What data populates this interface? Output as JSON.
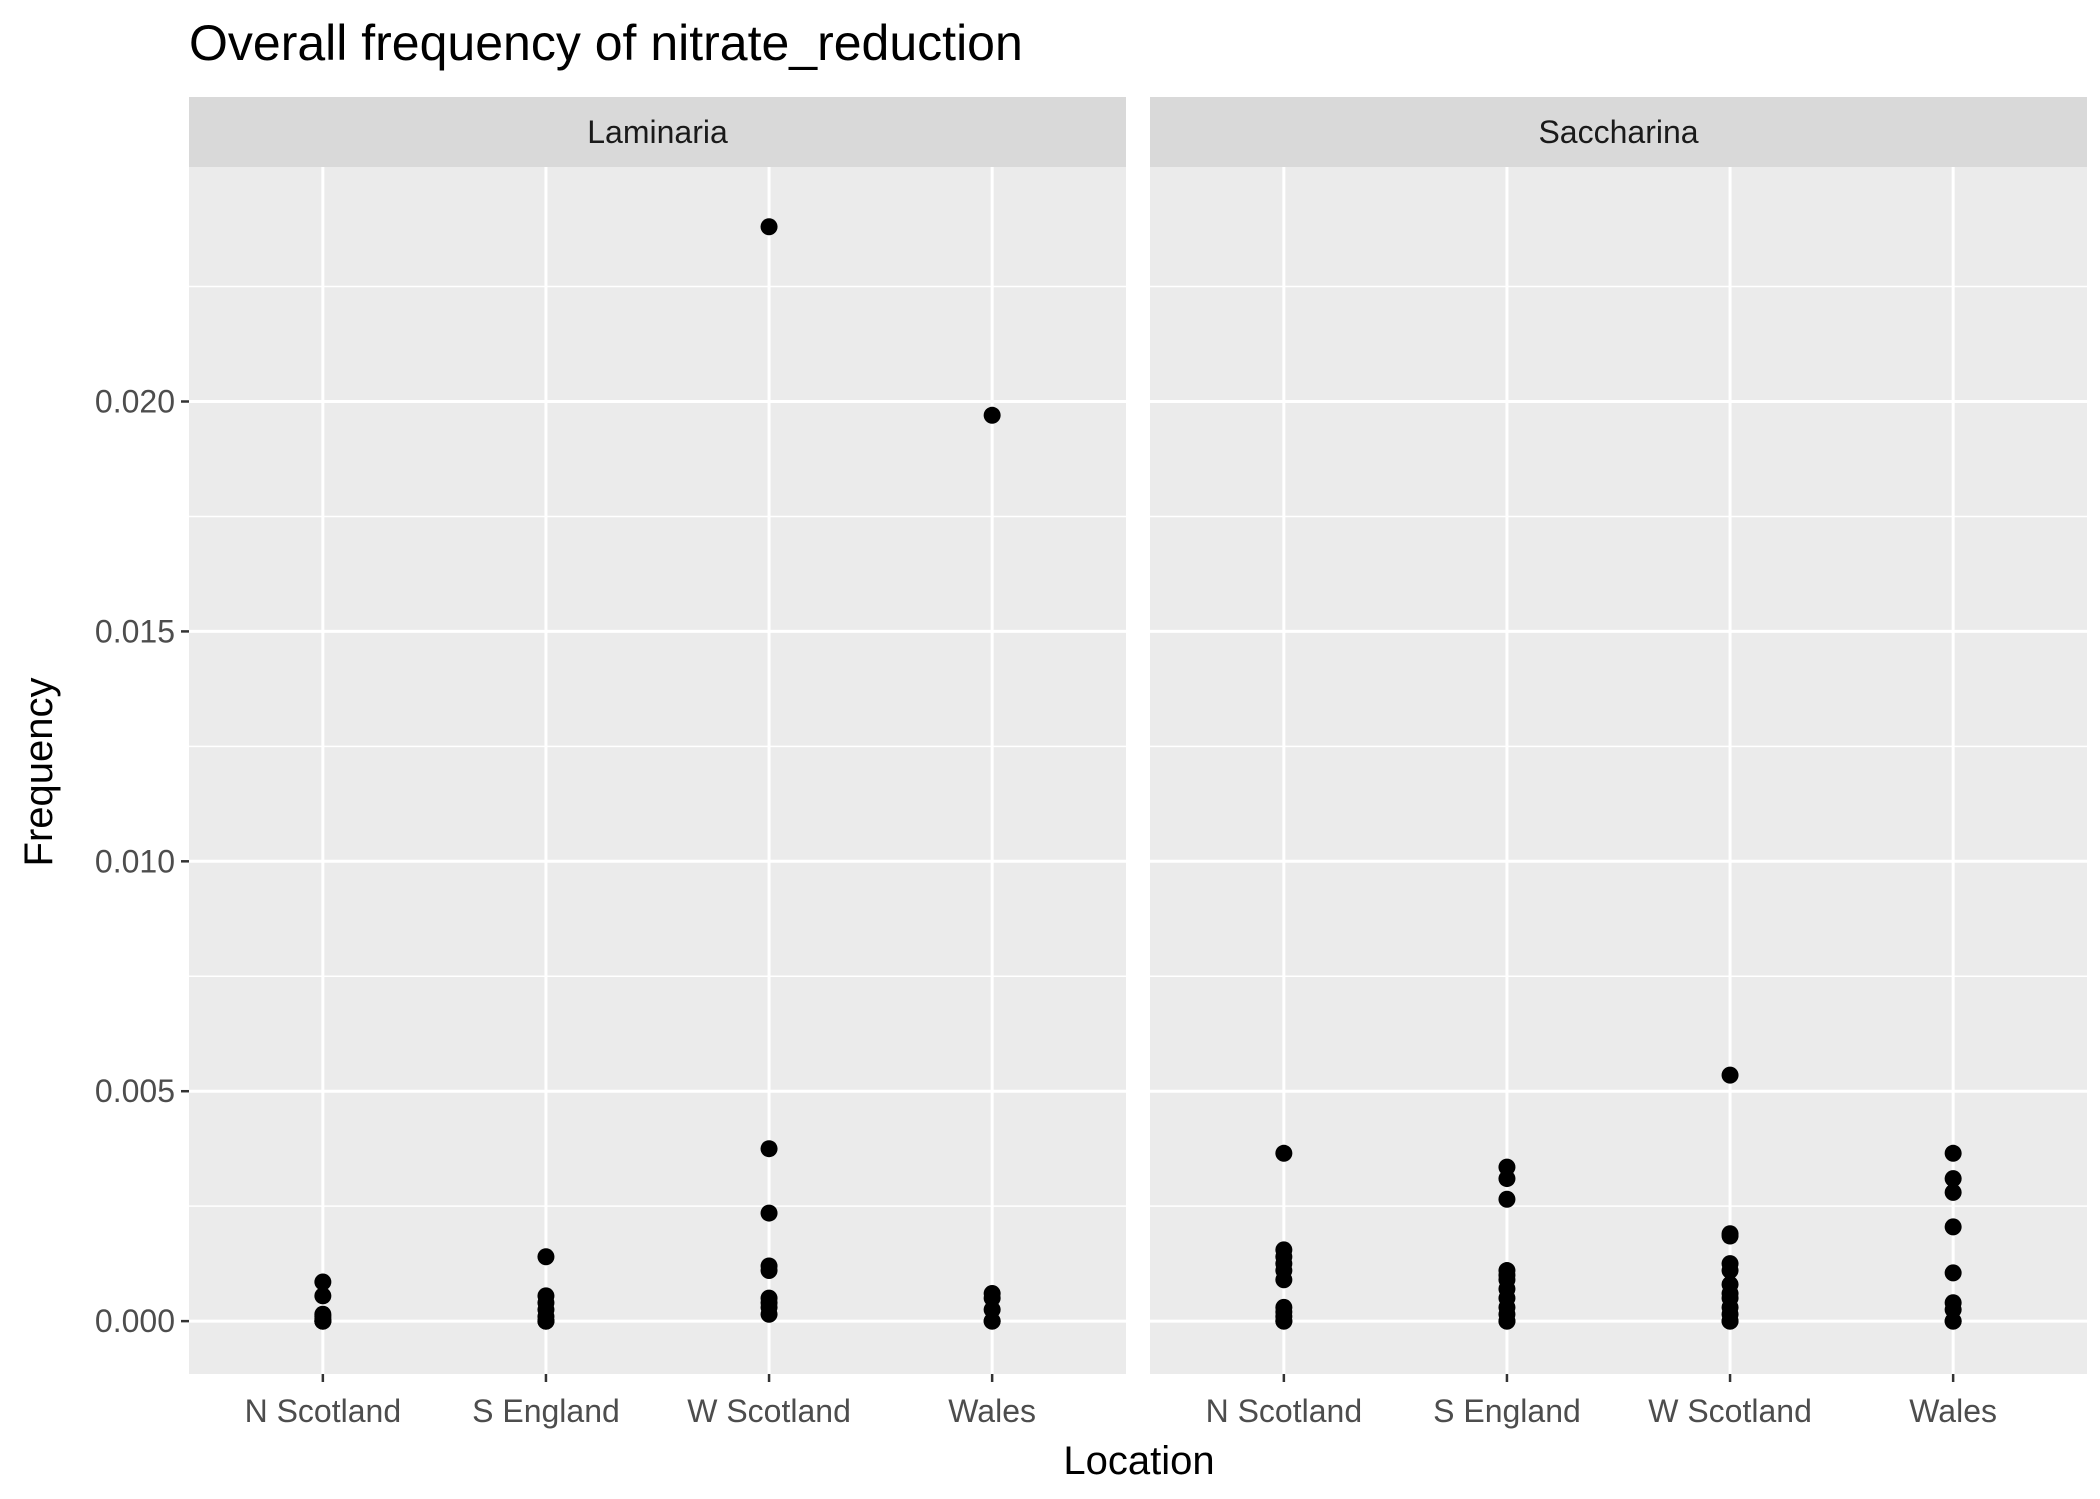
{
  "chart_data": {
    "type": "scatter",
    "title": "Overall frequency of nitrate_reduction",
    "xlabel": "Location",
    "ylabel": "Frequency",
    "categories": [
      "N Scotland",
      "S England",
      "W Scotland",
      "Wales"
    ],
    "ylim": [
      -0.00115,
      0.0251
    ],
    "yticks": [
      0.0,
      0.005,
      0.01,
      0.015,
      0.02
    ],
    "ytick_labels": [
      "0.000",
      "0.005",
      "0.010",
      "0.015",
      "0.020"
    ],
    "grid": true,
    "point_color": "#000000",
    "panel_background": "#ebebeb",
    "strip_background": "#d9d9d9",
    "panels": [
      {
        "name": "Laminaria",
        "points": {
          "N Scotland": [
            0.00085,
            0.00055,
            0.00015,
            0.0001,
            5e-05,
            0.0,
            0.0,
            0.0
          ],
          "S England": [
            0.0014,
            0.00055,
            0.0004,
            0.00025,
            0.0001,
            0.0,
            0.0,
            0.0
          ],
          "W Scotland": [
            0.0238,
            0.00375,
            0.00235,
            0.0012,
            0.0011,
            0.0005,
            0.0004,
            0.0003,
            0.00015
          ],
          "Wales": [
            0.0197,
            0.0006,
            0.0005,
            0.00025,
            0.0,
            0.0
          ]
        }
      },
      {
        "name": "Saccharina",
        "points": {
          "N Scotland": [
            0.00365,
            0.00155,
            0.0014,
            0.00125,
            0.0011,
            0.0009,
            0.0003,
            0.0002,
            0.0001,
            0.0,
            0.0
          ],
          "S England": [
            0.00335,
            0.0031,
            0.00265,
            0.0011,
            0.001,
            0.0009,
            0.0007,
            0.0005,
            0.0003,
            0.00015,
            0.0,
            0.0
          ],
          "W Scotland": [
            0.00535,
            0.0019,
            0.00185,
            0.00125,
            0.0011,
            0.0008,
            0.0006,
            0.0005,
            0.0003,
            0.00015,
            0.0,
            0.0
          ],
          "Wales": [
            0.00365,
            0.0031,
            0.0028,
            0.00205,
            0.00105,
            0.0004,
            0.00025,
            0.0,
            0.0
          ]
        }
      }
    ]
  }
}
